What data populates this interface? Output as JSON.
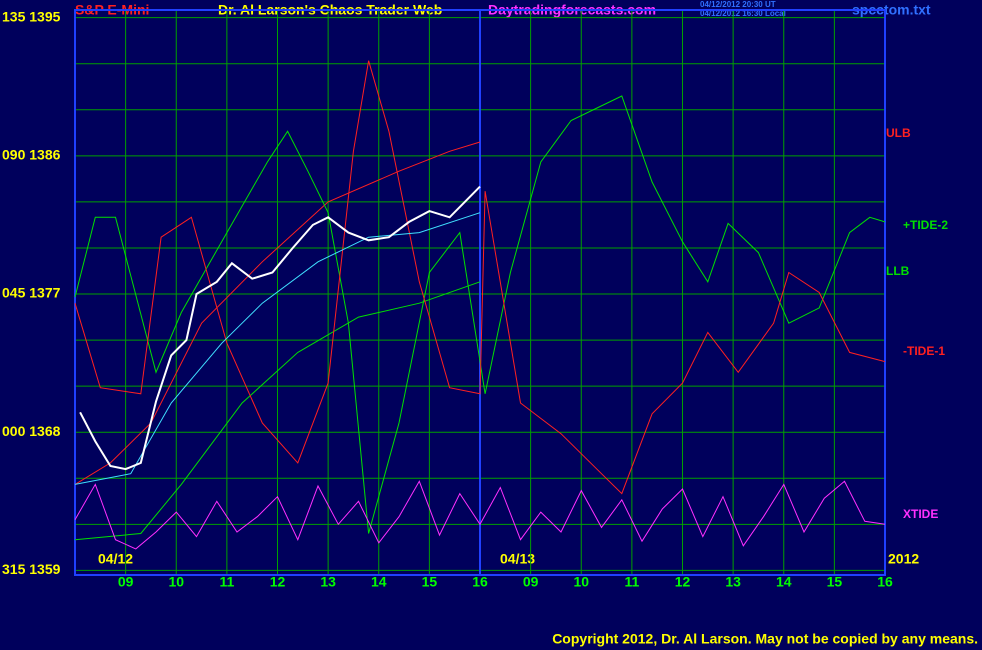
{
  "chart_data": {
    "type": "line",
    "title": "S&P E-Mini",
    "subtitle": "Dr. Al Larson's Chaos Trader Web",
    "site": "Daytradingforecasts.com",
    "stamp_ut": "04/12/2012 20:30 UT",
    "stamp_local": "04/12/2012 16:30 Local",
    "file": "spcctom.txt",
    "dates": [
      "04/12",
      "04/13"
    ],
    "year": "2012",
    "copyright": "Copyright 2012, Dr. Al Larson. May not be copied by any means.",
    "xlim": [
      0,
      16
    ],
    "xticks": [
      {
        "value": 1,
        "label": "09"
      },
      {
        "value": 2,
        "label": "10"
      },
      {
        "value": 3,
        "label": "11"
      },
      {
        "value": 4,
        "label": "12"
      },
      {
        "value": 5,
        "label": "13"
      },
      {
        "value": 6,
        "label": "14"
      },
      {
        "value": 7,
        "label": "15"
      },
      {
        "value": 8,
        "label": "16"
      },
      {
        "value": 9,
        "label": "09"
      },
      {
        "value": 10,
        "label": "10"
      },
      {
        "value": 11,
        "label": "11"
      },
      {
        "value": 12,
        "label": "12"
      },
      {
        "value": 13,
        "label": "13"
      },
      {
        "value": 14,
        "label": "14"
      },
      {
        "value": 15,
        "label": "15"
      },
      {
        "value": 16,
        "label": "16"
      }
    ],
    "divider": 8,
    "ylim": [
      1358.7,
      1395.5
    ],
    "yticks": [
      {
        "value": 1395,
        "label": "135 1395"
      },
      {
        "value": 1386,
        "label": "090 1386"
      },
      {
        "value": 1377,
        "label": "045 1377"
      },
      {
        "value": 1368,
        "label": "000 1368"
      },
      {
        "value": 1359,
        "label": "315 1359"
      }
    ],
    "ygrid": [
      1359,
      1362,
      1365,
      1368,
      1371,
      1374,
      1377,
      1380,
      1383,
      1386,
      1389,
      1392,
      1395
    ],
    "grid": true,
    "series": [
      {
        "name": "ULB",
        "color": "#ff2020",
        "x": [
          0,
          0.7,
          1.5,
          2.5,
          3.7,
          5.0,
          6.4,
          7.4,
          8.0
        ],
        "values": [
          1364.6,
          1366.0,
          1368.6,
          1375.1,
          1379.1,
          1383.0,
          1385.0,
          1386.3,
          1386.9
        ]
      },
      {
        "name": "+TIDE-2",
        "color": "#00e000",
        "x": [
          0,
          0.4,
          0.8,
          1.6,
          2.1,
          3.0,
          3.8,
          4.2,
          4.6,
          5.0,
          5.4,
          5.8,
          6.4,
          7.0,
          7.6,
          8.1,
          8.6,
          9.2,
          9.8,
          10.8,
          11.4,
          12.0,
          12.5,
          12.9,
          13.5,
          14.1,
          14.7,
          15.3,
          15.7,
          16
        ],
        "values": [
          1376.8,
          1382.0,
          1382.0,
          1371.9,
          1375.8,
          1381.0,
          1385.6,
          1387.6,
          1385.0,
          1382.3,
          1375.1,
          1361.4,
          1368.6,
          1378.4,
          1381.0,
          1370.5,
          1378.4,
          1385.6,
          1388.3,
          1389.9,
          1384.3,
          1380.4,
          1377.8,
          1381.6,
          1379.7,
          1375.1,
          1376.1,
          1381.0,
          1382.0,
          1381.7
        ]
      },
      {
        "name": "LLB",
        "color": "#00e000",
        "x": [
          0,
          1.3,
          2.1,
          3.3,
          4.4,
          5.6,
          6.8,
          8.0
        ],
        "values": [
          1361.0,
          1361.4,
          1364.6,
          1369.9,
          1373.2,
          1375.5,
          1376.4,
          1377.8
        ]
      },
      {
        "name": "-TIDE-1",
        "color": "#ff2020",
        "x": [
          0,
          0.5,
          1.3,
          1.7,
          2.3,
          3.0,
          3.7,
          4.4,
          5.0,
          5.5,
          5.8,
          6.2,
          6.8,
          7.4,
          8.0,
          8.1,
          8.8,
          9.6,
          10.4,
          10.8,
          11.4,
          12.0,
          12.5,
          13.1,
          13.8,
          14.1,
          14.7,
          15.3,
          16
        ],
        "values": [
          1376.4,
          1370.9,
          1370.5,
          1380.7,
          1382.0,
          1373.8,
          1368.6,
          1366.0,
          1371.2,
          1386.3,
          1392.2,
          1387.6,
          1377.8,
          1370.9,
          1370.5,
          1383.7,
          1369.9,
          1367.9,
          1365.3,
          1364.0,
          1369.2,
          1371.2,
          1374.5,
          1371.9,
          1375.1,
          1378.4,
          1377.1,
          1373.2,
          1372.6
        ]
      },
      {
        "name": "XTIDE",
        "color": "#ff30ff",
        "x": [
          0,
          0.4,
          0.8,
          1.2,
          1.6,
          2.0,
          2.4,
          2.8,
          3.2,
          3.6,
          4.0,
          4.4,
          4.8,
          5.2,
          5.6,
          6.0,
          6.4,
          6.8,
          7.2,
          7.6,
          8.0,
          8.4,
          8.8,
          9.2,
          9.6,
          10.0,
          10.4,
          10.8,
          11.2,
          11.6,
          12.0,
          12.4,
          12.8,
          13.2,
          13.6,
          14.0,
          14.4,
          14.8,
          15.2,
          15.6,
          16.0
        ],
        "values": [
          1362.3,
          1364.6,
          1361.0,
          1360.4,
          1361.5,
          1362.8,
          1361.2,
          1363.5,
          1361.5,
          1362.5,
          1363.8,
          1361.0,
          1364.5,
          1362.0,
          1363.5,
          1360.8,
          1362.5,
          1364.8,
          1361.3,
          1364.0,
          1362.0,
          1364.4,
          1361.0,
          1362.8,
          1361.5,
          1364.2,
          1361.8,
          1363.6,
          1360.9,
          1363.0,
          1364.3,
          1361.2,
          1363.8,
          1360.6,
          1362.5,
          1364.6,
          1361.5,
          1363.7,
          1364.8,
          1362.2,
          1362.0
        ]
      },
      {
        "color": "#40e0ff",
        "x": [
          0,
          1.1,
          1.9,
          2.9,
          3.7,
          4.8,
          5.8,
          6.8,
          8.0
        ],
        "values": [
          1364.6,
          1365.3,
          1369.9,
          1373.8,
          1376.4,
          1379.1,
          1380.7,
          1381.0,
          1382.3
        ]
      },
      {
        "color": "#ffffff",
        "x": [
          0.1,
          0.4,
          0.7,
          1.0,
          1.3,
          1.6,
          1.9,
          2.2,
          2.4,
          2.8,
          3.1,
          3.5,
          3.9,
          4.3,
          4.7,
          5.0,
          5.4,
          5.8,
          6.2,
          6.6,
          7.0,
          7.4,
          7.7,
          8.0
        ],
        "values": [
          1369.3,
          1367.4,
          1365.8,
          1365.6,
          1366.0,
          1370.0,
          1373.0,
          1374.0,
          1377.0,
          1377.8,
          1379.0,
          1378.0,
          1378.4,
          1380.0,
          1381.5,
          1382.0,
          1381.0,
          1380.5,
          1380.7,
          1381.7,
          1382.4,
          1382.0,
          1383.0,
          1384.0
        ]
      }
    ]
  }
}
